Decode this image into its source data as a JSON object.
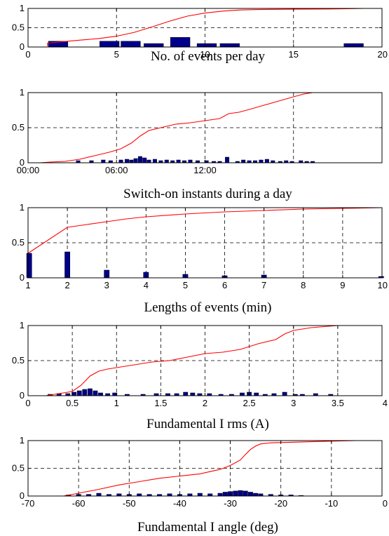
{
  "chart_data": [
    {
      "type": "bar",
      "xlabel": "No. of events per day",
      "xlim": [
        0,
        20
      ],
      "ylim": [
        0,
        1
      ],
      "xticks": [
        0,
        5,
        10,
        15,
        20
      ],
      "xtick_labels": [
        "0",
        "5",
        "10",
        "15",
        "20"
      ],
      "yticks": [
        0,
        0.5,
        1
      ],
      "ytick_labels": [
        "0",
        "0.5",
        "1"
      ],
      "xgrid": [
        5,
        10,
        15
      ],
      "ygrid": [
        0.5
      ],
      "bar_width": 1.1,
      "bars": [
        {
          "x": 1.7,
          "y": 0.15
        },
        {
          "x": 4.6,
          "y": 0.15
        },
        {
          "x": 5.8,
          "y": 0.15
        },
        {
          "x": 7.1,
          "y": 0.09
        },
        {
          "x": 8.6,
          "y": 0.25
        },
        {
          "x": 10.1,
          "y": 0.09
        },
        {
          "x": 11.4,
          "y": 0.09
        },
        {
          "x": 18.4,
          "y": 0.09
        }
      ],
      "cdf": [
        [
          1.1,
          0.02
        ],
        [
          1.1,
          0.1
        ],
        [
          2,
          0.14
        ],
        [
          3,
          0.18
        ],
        [
          4,
          0.22
        ],
        [
          5,
          0.28
        ],
        [
          6,
          0.38
        ],
        [
          7,
          0.52
        ],
        [
          8,
          0.67
        ],
        [
          9,
          0.8
        ],
        [
          10,
          0.88
        ],
        [
          11,
          0.93
        ],
        [
          12,
          0.96
        ],
        [
          13,
          0.97
        ],
        [
          15,
          0.98
        ],
        [
          17,
          0.985
        ],
        [
          18,
          0.99
        ],
        [
          19,
          1
        ],
        [
          20,
          1
        ]
      ]
    },
    {
      "type": "bar",
      "xlabel": "Switch-on instants during a day",
      "xlim": [
        0,
        24
      ],
      "ylim": [
        0,
        1
      ],
      "xticks": [
        0,
        6,
        12
      ],
      "xtick_labels": [
        "00:00",
        "06:00",
        "12:00"
      ],
      "yticks": [
        0,
        0.5,
        1
      ],
      "ytick_labels": [
        "0",
        "0.5",
        "1"
      ],
      "xgrid": [
        6,
        12,
        18
      ],
      "ygrid": [
        0.5
      ],
      "bar_width": 0.26,
      "bars": [
        {
          "x": 3.4,
          "y": 0.03
        },
        {
          "x": 4.3,
          "y": 0.03
        },
        {
          "x": 5.1,
          "y": 0.04
        },
        {
          "x": 5.6,
          "y": 0.03
        },
        {
          "x": 6.3,
          "y": 0.04
        },
        {
          "x": 6.7,
          "y": 0.05
        },
        {
          "x": 7.0,
          "y": 0.04
        },
        {
          "x": 7.3,
          "y": 0.06
        },
        {
          "x": 7.6,
          "y": 0.09
        },
        {
          "x": 7.9,
          "y": 0.07
        },
        {
          "x": 8.2,
          "y": 0.04
        },
        {
          "x": 8.6,
          "y": 0.05
        },
        {
          "x": 9.0,
          "y": 0.03
        },
        {
          "x": 9.4,
          "y": 0.04
        },
        {
          "x": 9.8,
          "y": 0.03
        },
        {
          "x": 10.2,
          "y": 0.04
        },
        {
          "x": 10.6,
          "y": 0.03
        },
        {
          "x": 11.0,
          "y": 0.04
        },
        {
          "x": 11.5,
          "y": 0.03
        },
        {
          "x": 12.1,
          "y": 0.03
        },
        {
          "x": 12.6,
          "y": 0.02
        },
        {
          "x": 13.0,
          "y": 0.02
        },
        {
          "x": 13.5,
          "y": 0.08
        },
        {
          "x": 14.2,
          "y": 0.02
        },
        {
          "x": 14.6,
          "y": 0.04
        },
        {
          "x": 15.0,
          "y": 0.03
        },
        {
          "x": 15.4,
          "y": 0.03
        },
        {
          "x": 15.8,
          "y": 0.04
        },
        {
          "x": 16.2,
          "y": 0.05
        },
        {
          "x": 16.6,
          "y": 0.03
        },
        {
          "x": 17.1,
          "y": 0.02
        },
        {
          "x": 17.5,
          "y": 0.03
        },
        {
          "x": 17.9,
          "y": 0.02
        },
        {
          "x": 18.5,
          "y": 0.03
        },
        {
          "x": 18.9,
          "y": 0.02
        },
        {
          "x": 19.3,
          "y": 0.02
        }
      ],
      "cdf": [
        [
          0.8,
          0
        ],
        [
          1.5,
          0.01
        ],
        [
          2.5,
          0.02
        ],
        [
          3.5,
          0.05
        ],
        [
          4.5,
          0.1
        ],
        [
          5.5,
          0.15
        ],
        [
          6.3,
          0.2
        ],
        [
          7,
          0.28
        ],
        [
          7.6,
          0.38
        ],
        [
          8.2,
          0.46
        ],
        [
          9,
          0.5
        ],
        [
          10,
          0.55
        ],
        [
          11,
          0.57
        ],
        [
          12,
          0.6
        ],
        [
          13,
          0.63
        ],
        [
          13.6,
          0.7
        ],
        [
          14.3,
          0.72
        ],
        [
          15,
          0.76
        ],
        [
          16,
          0.82
        ],
        [
          17,
          0.88
        ],
        [
          18,
          0.94
        ],
        [
          18.7,
          0.98
        ],
        [
          19.3,
          1
        ]
      ]
    },
    {
      "type": "bar",
      "xlabel": "Lengths of events (min)",
      "xlim": [
        1,
        10
      ],
      "ylim": [
        0,
        1
      ],
      "xticks": [
        1,
        2,
        3,
        4,
        5,
        6,
        7,
        8,
        9,
        10
      ],
      "xtick_labels": [
        "1",
        "2",
        "3",
        "4",
        "5",
        "6",
        "7",
        "8",
        "9",
        "10"
      ],
      "yticks": [
        0,
        0.5,
        1
      ],
      "ytick_labels": [
        "0",
        "0.5",
        "1"
      ],
      "xgrid": [
        2,
        3,
        4,
        5,
        6,
        7,
        8,
        9
      ],
      "ygrid": [
        0.5
      ],
      "bar_width": 0.13,
      "bars": [
        {
          "x": 1.03,
          "y": 0.35
        },
        {
          "x": 2.0,
          "y": 0.37
        },
        {
          "x": 3.0,
          "y": 0.11
        },
        {
          "x": 4.0,
          "y": 0.08
        },
        {
          "x": 5.0,
          "y": 0.05
        },
        {
          "x": 6.0,
          "y": 0.03
        },
        {
          "x": 7.0,
          "y": 0.04
        },
        {
          "x": 9.98,
          "y": 0.02
        }
      ],
      "cdf": [
        [
          1,
          0.35
        ],
        [
          2,
          0.72
        ],
        [
          2.5,
          0.76
        ],
        [
          3,
          0.8
        ],
        [
          3.5,
          0.84
        ],
        [
          4,
          0.87
        ],
        [
          5,
          0.91
        ],
        [
          6,
          0.94
        ],
        [
          7,
          0.96
        ],
        [
          8,
          0.98
        ],
        [
          9,
          0.99
        ],
        [
          10,
          1
        ]
      ]
    },
    {
      "type": "bar",
      "xlabel": "Fundamental I rms (A)",
      "xlim": [
        0,
        4
      ],
      "ylim": [
        0,
        1
      ],
      "xticks": [
        0,
        0.5,
        1,
        1.5,
        2,
        2.5,
        3,
        3.5,
        4
      ],
      "xtick_labels": [
        "0",
        "0.5",
        "1",
        "1.5",
        "2",
        "2.5",
        "3",
        "3.5",
        "4"
      ],
      "yticks": [
        0,
        0.5,
        1
      ],
      "ytick_labels": [
        "0",
        "0.5",
        "1"
      ],
      "xgrid": [
        0.5,
        1,
        1.5,
        2,
        2.5,
        3,
        3.5
      ],
      "ygrid": [
        0.5
      ],
      "bar_width": 0.05,
      "bars": [
        {
          "x": 0.25,
          "y": 0.02
        },
        {
          "x": 0.35,
          "y": 0.03
        },
        {
          "x": 0.45,
          "y": 0.03
        },
        {
          "x": 0.52,
          "y": 0.05
        },
        {
          "x": 0.58,
          "y": 0.07
        },
        {
          "x": 0.64,
          "y": 0.09
        },
        {
          "x": 0.7,
          "y": 0.1
        },
        {
          "x": 0.76,
          "y": 0.07
        },
        {
          "x": 0.82,
          "y": 0.04
        },
        {
          "x": 0.9,
          "y": 0.03
        },
        {
          "x": 0.98,
          "y": 0.04
        },
        {
          "x": 1.12,
          "y": 0.02
        },
        {
          "x": 1.3,
          "y": 0.02
        },
        {
          "x": 1.45,
          "y": 0.03
        },
        {
          "x": 1.58,
          "y": 0.03
        },
        {
          "x": 1.68,
          "y": 0.03
        },
        {
          "x": 1.78,
          "y": 0.05
        },
        {
          "x": 1.86,
          "y": 0.04
        },
        {
          "x": 1.94,
          "y": 0.03
        },
        {
          "x": 2.05,
          "y": 0.03
        },
        {
          "x": 2.18,
          "y": 0.02
        },
        {
          "x": 2.3,
          "y": 0.02
        },
        {
          "x": 2.42,
          "y": 0.04
        },
        {
          "x": 2.5,
          "y": 0.05
        },
        {
          "x": 2.58,
          "y": 0.04
        },
        {
          "x": 2.68,
          "y": 0.02
        },
        {
          "x": 2.78,
          "y": 0.03
        },
        {
          "x": 2.9,
          "y": 0.05
        },
        {
          "x": 3.02,
          "y": 0.02
        },
        {
          "x": 3.1,
          "y": 0.02
        },
        {
          "x": 3.25,
          "y": 0.03
        },
        {
          "x": 3.42,
          "y": 0.02
        }
      ],
      "cdf": [
        [
          0.2,
          0
        ],
        [
          0.3,
          0.02
        ],
        [
          0.5,
          0.06
        ],
        [
          0.6,
          0.15
        ],
        [
          0.7,
          0.28
        ],
        [
          0.8,
          0.35
        ],
        [
          0.9,
          0.38
        ],
        [
          1,
          0.4
        ],
        [
          1.2,
          0.44
        ],
        [
          1.4,
          0.48
        ],
        [
          1.6,
          0.5
        ],
        [
          1.8,
          0.55
        ],
        [
          2,
          0.6
        ],
        [
          2.2,
          0.62
        ],
        [
          2.4,
          0.66
        ],
        [
          2.5,
          0.7
        ],
        [
          2.6,
          0.74
        ],
        [
          2.8,
          0.8
        ],
        [
          2.9,
          0.88
        ],
        [
          3,
          0.93
        ],
        [
          3.2,
          0.97
        ],
        [
          3.5,
          1
        ],
        [
          4,
          1
        ]
      ]
    },
    {
      "type": "bar",
      "xlabel": "Fundamental I angle (deg)",
      "xlim": [
        -70,
        0
      ],
      "ylim": [
        0,
        1
      ],
      "xticks": [
        -70,
        -60,
        -50,
        -40,
        -30,
        -20,
        -10,
        0
      ],
      "xtick_labels": [
        "-70",
        "-60",
        "-50",
        "-40",
        "-30",
        "-20",
        "-10",
        "0"
      ],
      "yticks": [
        0,
        0.5,
        1
      ],
      "ytick_labels": [
        "0",
        "0.5",
        "1"
      ],
      "xgrid": [
        -60,
        -50,
        -40,
        -30,
        -20,
        -10
      ],
      "ygrid": [
        0.5
      ],
      "bar_width": 0.9,
      "bars": [
        {
          "x": -62,
          "y": 0.02
        },
        {
          "x": -60,
          "y": 0.03
        },
        {
          "x": -58,
          "y": 0.03
        },
        {
          "x": -56,
          "y": 0.05
        },
        {
          "x": -54,
          "y": 0.03
        },
        {
          "x": -52,
          "y": 0.04
        },
        {
          "x": -50,
          "y": 0.03
        },
        {
          "x": -48,
          "y": 0.04
        },
        {
          "x": -46,
          "y": 0.03
        },
        {
          "x": -44,
          "y": 0.03
        },
        {
          "x": -42,
          "y": 0.04
        },
        {
          "x": -40,
          "y": 0.03
        },
        {
          "x": -38,
          "y": 0.04
        },
        {
          "x": -36,
          "y": 0.05
        },
        {
          "x": -34,
          "y": 0.04
        },
        {
          "x": -32,
          "y": 0.05
        },
        {
          "x": -31,
          "y": 0.07
        },
        {
          "x": -30,
          "y": 0.08
        },
        {
          "x": -29,
          "y": 0.09
        },
        {
          "x": -28,
          "y": 0.1
        },
        {
          "x": -27,
          "y": 0.09
        },
        {
          "x": -26,
          "y": 0.07
        },
        {
          "x": -25,
          "y": 0.05
        },
        {
          "x": -24,
          "y": 0.04
        },
        {
          "x": -22,
          "y": 0.03
        },
        {
          "x": -20,
          "y": 0.02
        },
        {
          "x": -18,
          "y": 0.02
        },
        {
          "x": -16,
          "y": 0.01
        }
      ],
      "cdf": [
        [
          -63,
          0
        ],
        [
          -60,
          0.05
        ],
        [
          -56,
          0.12
        ],
        [
          -52,
          0.2
        ],
        [
          -48,
          0.26
        ],
        [
          -44,
          0.32
        ],
        [
          -40,
          0.36
        ],
        [
          -36,
          0.4
        ],
        [
          -34,
          0.44
        ],
        [
          -32,
          0.48
        ],
        [
          -30,
          0.55
        ],
        [
          -28,
          0.65
        ],
        [
          -27,
          0.75
        ],
        [
          -26,
          0.84
        ],
        [
          -25,
          0.9
        ],
        [
          -24,
          0.94
        ],
        [
          -22,
          0.96
        ],
        [
          -18,
          0.97
        ],
        [
          -14,
          0.98
        ],
        [
          -10,
          0.99
        ],
        [
          -5,
          1
        ],
        [
          0,
          1
        ]
      ]
    }
  ]
}
